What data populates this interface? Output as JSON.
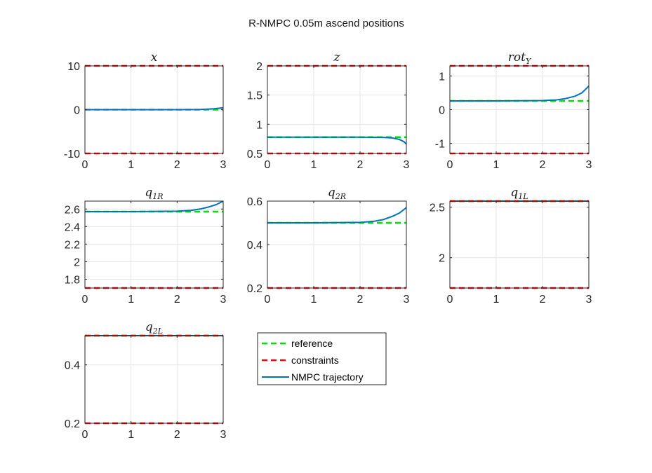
{
  "figure": {
    "title": "R-NMPC 0.05m ascend positions"
  },
  "colors": {
    "reference": "#00e000",
    "constraints": "#ff0000",
    "trajectory": "#0072bd",
    "grid": "#e6e6e6",
    "axes": "#262626"
  },
  "legend": {
    "entries": [
      {
        "label": "reference",
        "key": "reference",
        "style": "dashed"
      },
      {
        "label": "constraints",
        "key": "constraints",
        "style": "dashed"
      },
      {
        "label": "NMPC trajectory",
        "key": "trajectory",
        "style": "solid"
      }
    ]
  },
  "chart_data": [
    {
      "type": "line",
      "title_main": "x",
      "title_sub": "",
      "xlim": [
        0,
        3
      ],
      "ylim": [
        -10,
        10
      ],
      "xticks": [
        0,
        1,
        2,
        3
      ],
      "yticks": [
        -10,
        0,
        10
      ],
      "ytick_labels": [
        "-10",
        "0",
        "10"
      ],
      "grid": true,
      "constraints": [
        -10,
        10
      ],
      "reference": {
        "x": [
          0,
          3
        ],
        "y": [
          0,
          0
        ]
      },
      "trajectory": {
        "x": [
          0,
          1,
          2,
          2.5,
          2.8,
          3
        ],
        "y": [
          0,
          0,
          0,
          0.05,
          0.2,
          0.45
        ]
      }
    },
    {
      "type": "line",
      "title_main": "z",
      "title_sub": "",
      "xlim": [
        0,
        3
      ],
      "ylim": [
        0.5,
        2
      ],
      "xticks": [
        0,
        1,
        2,
        3
      ],
      "yticks": [
        0.5,
        1,
        1.5,
        2
      ],
      "ytick_labels": [
        "0.5",
        "1",
        "1.5",
        "2"
      ],
      "grid": true,
      "constraints": [
        0.5,
        2
      ],
      "reference": {
        "x": [
          0,
          3
        ],
        "y": [
          0.78,
          0.78
        ]
      },
      "trajectory": {
        "x": [
          0,
          1,
          2,
          2.5,
          2.7,
          2.85,
          2.95,
          3
        ],
        "y": [
          0.78,
          0.78,
          0.78,
          0.775,
          0.765,
          0.74,
          0.7,
          0.66
        ]
      }
    },
    {
      "type": "line",
      "title_main": "rot",
      "title_sub": "Y",
      "xlim": [
        0,
        3
      ],
      "ylim": [
        -1.3,
        1.3
      ],
      "xticks": [
        0,
        1,
        2,
        3
      ],
      "yticks": [
        -1,
        0,
        1
      ],
      "ytick_labels": [
        "-1",
        "0",
        "1"
      ],
      "grid": true,
      "constraints": [
        -1.3,
        1.3
      ],
      "reference": {
        "x": [
          0,
          3
        ],
        "y": [
          0.26,
          0.26
        ]
      },
      "trajectory": {
        "x": [
          0,
          1,
          2,
          2.3,
          2.5,
          2.7,
          2.85,
          3
        ],
        "y": [
          0.26,
          0.26,
          0.27,
          0.29,
          0.33,
          0.4,
          0.5,
          0.7
        ]
      }
    },
    {
      "type": "line",
      "title_main": "q",
      "title_sub": "1R",
      "xlim": [
        0,
        3
      ],
      "ylim": [
        1.7,
        2.69
      ],
      "xticks": [
        0,
        1,
        2,
        3
      ],
      "yticks": [
        1.8,
        2,
        2.2,
        2.4,
        2.6
      ],
      "ytick_labels": [
        "1.8",
        "2",
        "2.2",
        "2.4",
        "2.6"
      ],
      "grid": true,
      "constraints": [
        1.7
      ],
      "reference": {
        "x": [
          0,
          3
        ],
        "y": [
          2.57,
          2.57
        ]
      },
      "trajectory": {
        "x": [
          0,
          1,
          2,
          2.3,
          2.5,
          2.7,
          2.85,
          3
        ],
        "y": [
          2.57,
          2.57,
          2.575,
          2.585,
          2.6,
          2.625,
          2.65,
          2.69
        ]
      }
    },
    {
      "type": "line",
      "title_main": "q",
      "title_sub": "2R",
      "xlim": [
        0,
        3
      ],
      "ylim": [
        0.2,
        0.6
      ],
      "xticks": [
        0,
        1,
        2,
        3
      ],
      "yticks": [
        0.2,
        0.4,
        0.6
      ],
      "ytick_labels": [
        "0.2",
        "0.4",
        "0.6"
      ],
      "grid": true,
      "constraints": [
        0.2
      ],
      "reference": {
        "x": [
          0,
          3
        ],
        "y": [
          0.5,
          0.5
        ]
      },
      "trajectory": {
        "x": [
          0,
          1,
          2,
          2.3,
          2.5,
          2.7,
          2.85,
          3
        ],
        "y": [
          0.5,
          0.5,
          0.502,
          0.507,
          0.515,
          0.53,
          0.545,
          0.57
        ]
      }
    },
    {
      "type": "line",
      "title_main": "q",
      "title_sub": "1L",
      "xlim": [
        0,
        3
      ],
      "ylim": [
        1.7,
        2.56
      ],
      "xticks": [
        0,
        1,
        2,
        3
      ],
      "yticks": [
        2,
        2.5
      ],
      "ytick_labels": [
        "2",
        "2.5"
      ],
      "grid": true,
      "constraints": [
        1.7,
        2.56
      ],
      "reference": {
        "x": [
          0,
          3
        ],
        "y": [
          2.56,
          2.56
        ]
      },
      "trajectory": {
        "x": [
          0,
          3
        ],
        "y": [
          2.56,
          2.56
        ]
      }
    },
    {
      "type": "line",
      "title_main": "q",
      "title_sub": "2L",
      "xlim": [
        0,
        3
      ],
      "ylim": [
        0.2,
        0.5
      ],
      "xticks": [
        0,
        1,
        2,
        3
      ],
      "yticks": [
        0.2,
        0.4
      ],
      "ytick_labels": [
        "0.2",
        "0.4"
      ],
      "grid": true,
      "constraints": [
        0.2,
        0.5
      ],
      "reference": {
        "x": [
          0,
          3
        ],
        "y": [
          0.5,
          0.5
        ]
      },
      "trajectory": {
        "x": [
          0,
          3
        ],
        "y": [
          0.5,
          0.5
        ]
      }
    }
  ]
}
